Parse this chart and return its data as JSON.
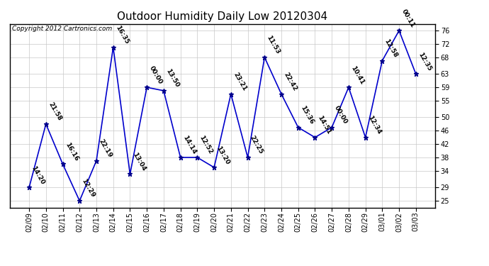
{
  "title": "Outdoor Humidity Daily Low 20120304",
  "copyright_text": "Copyright 2012 Cartronics.com",
  "background_color": "#ffffff",
  "line_color": "#0000cc",
  "marker_color": "#00008B",
  "grid_color": "#c8c8c8",
  "dates": [
    "02/09",
    "02/10",
    "02/11",
    "02/12",
    "02/13",
    "02/14",
    "02/15",
    "02/16",
    "02/17",
    "02/18",
    "02/19",
    "02/20",
    "02/21",
    "02/22",
    "02/23",
    "02/24",
    "02/25",
    "02/26",
    "02/27",
    "02/28",
    "02/29",
    "03/01",
    "03/02",
    "03/03"
  ],
  "values": [
    29,
    48,
    36,
    25,
    37,
    71,
    33,
    59,
    58,
    38,
    38,
    35,
    57,
    38,
    68,
    57,
    47,
    44,
    47,
    59,
    44,
    67,
    76,
    63
  ],
  "labels": [
    "14:20",
    "21:58",
    "16:16",
    "12:29",
    "22:19",
    "16:35",
    "13:04",
    "00:00",
    "13:50",
    "14:14",
    "12:52",
    "13:20",
    "23:21",
    "22:25",
    "11:53",
    "22:42",
    "15:36",
    "14:51",
    "00:00",
    "10:41",
    "12:34",
    "12:58",
    "00:11",
    "12:35"
  ],
  "ylim": [
    23,
    78
  ],
  "yticks": [
    25,
    29,
    34,
    38,
    42,
    46,
    50,
    55,
    59,
    63,
    68,
    72,
    76
  ],
  "title_fontsize": 11,
  "label_fontsize": 6.5,
  "tick_fontsize": 7,
  "copyright_fontsize": 6.5
}
